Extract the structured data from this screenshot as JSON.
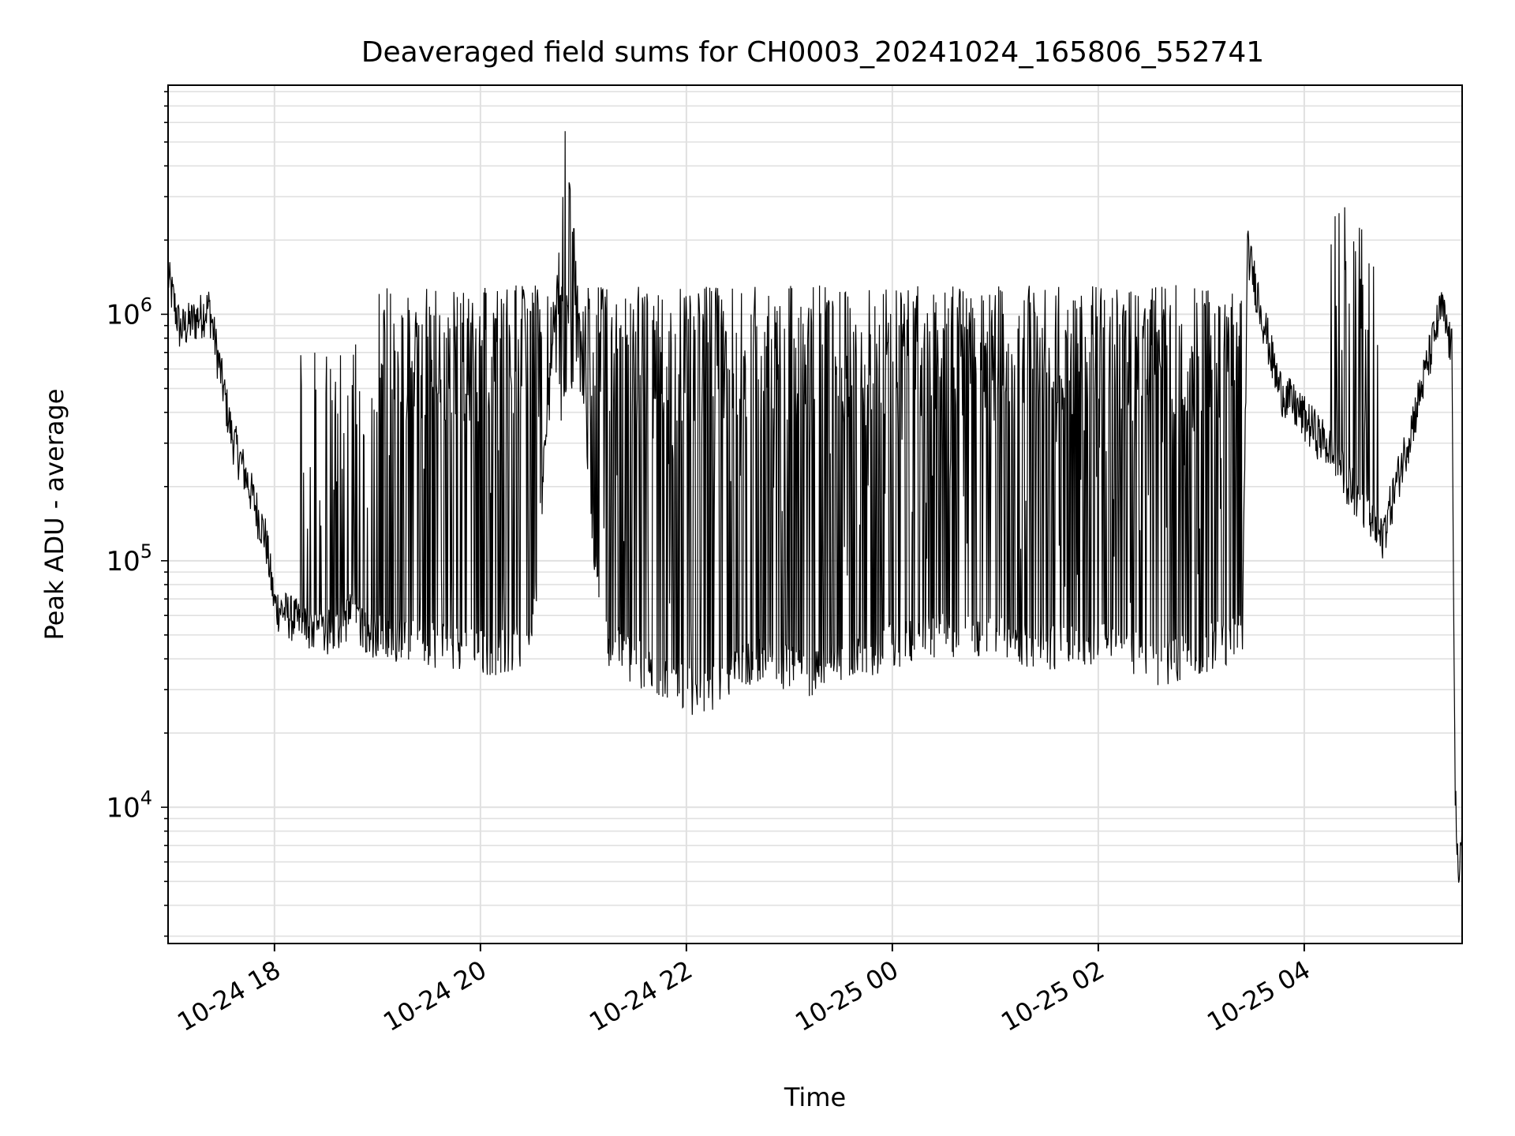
{
  "chart_data": {
    "type": "line",
    "title": "Deaveraged field sums for CH0003_20241024_165806_552741",
    "xlabel": "Time",
    "ylabel": "Peak ADU - average",
    "yscale": "log",
    "ylim": [
      2800,
      8500000
    ],
    "xlim": [
      "2024-10-24 16:58",
      "2024-10-25 05:32"
    ],
    "grid": true,
    "line_color": "#000000",
    "grid_color": "#e0e0e0",
    "x_ticks": [
      {
        "t": "2024-10-24 18:00",
        "label": "10-24 18"
      },
      {
        "t": "2024-10-24 20:00",
        "label": "10-24 20"
      },
      {
        "t": "2024-10-24 22:00",
        "label": "10-24 22"
      },
      {
        "t": "2024-10-25 00:00",
        "label": "10-25 00"
      },
      {
        "t": "2024-10-25 02:00",
        "label": "10-25 02"
      },
      {
        "t": "2024-10-25 04:00",
        "label": "10-25 04"
      }
    ],
    "y_ticks": [
      {
        "value": 10000,
        "base": "10",
        "exp": "4"
      },
      {
        "value": 100000,
        "base": "10",
        "exp": "5"
      },
      {
        "value": 1000000,
        "base": "10",
        "exp": "6"
      }
    ],
    "series": [
      {
        "points": [
          [
            "2024-10-24 16:58",
            1400000
          ],
          [
            "2024-10-24 17:05",
            850000
          ],
          [
            "2024-10-24 17:15",
            950000
          ],
          [
            "2024-10-24 17:22",
            1050000
          ],
          [
            "2024-10-24 17:28",
            600000
          ],
          [
            "2024-10-24 17:35",
            320000
          ],
          [
            "2024-10-24 17:45",
            200000
          ],
          [
            "2024-10-24 17:55",
            120000
          ],
          [
            "2024-10-24 18:00",
            65000
          ],
          [
            "2024-10-24 18:15",
            55000
          ],
          [
            "2024-10-24 18:30",
            50000
          ],
          [
            "2024-10-24 18:45",
            60000
          ],
          [
            "2024-10-24 19:00",
            48000
          ],
          [
            "2024-10-24 19:30",
            46000
          ],
          [
            "2024-10-24 20:00",
            42000
          ],
          [
            "2024-10-24 20:30",
            45000
          ],
          [
            "2024-10-24 20:50",
            5500000
          ],
          [
            "2024-10-24 21:10",
            48000
          ],
          [
            "2024-10-24 21:40",
            35000
          ],
          [
            "2024-10-24 22:10",
            28000
          ],
          [
            "2024-10-24 22:40",
            40000
          ],
          [
            "2024-10-24 23:10",
            35000
          ],
          [
            "2024-10-24 23:40",
            40000
          ],
          [
            "2024-10-25 00:00",
            45000
          ],
          [
            "2024-10-25 00:30",
            50000
          ],
          [
            "2024-10-25 01:00",
            48000
          ],
          [
            "2024-10-25 01:30",
            45000
          ],
          [
            "2024-10-25 02:00",
            47000
          ],
          [
            "2024-10-25 02:40",
            38000
          ],
          [
            "2024-10-25 03:24",
            50000
          ],
          [
            "2024-10-25 03:27",
            1800000
          ],
          [
            "2024-10-25 03:45",
            500000
          ],
          [
            "2024-10-25 04:15",
            280000
          ],
          [
            "2024-10-25 04:45",
            120000
          ],
          [
            "2024-10-25 05:05",
            400000
          ],
          [
            "2024-10-25 05:20",
            1050000
          ],
          [
            "2024-10-25 05:26",
            700000
          ],
          [
            "2024-10-25 05:28",
            12000
          ],
          [
            "2024-10-25 05:30",
            4000
          ],
          [
            "2024-10-25 05:32",
            9000
          ]
        ]
      }
    ]
  }
}
